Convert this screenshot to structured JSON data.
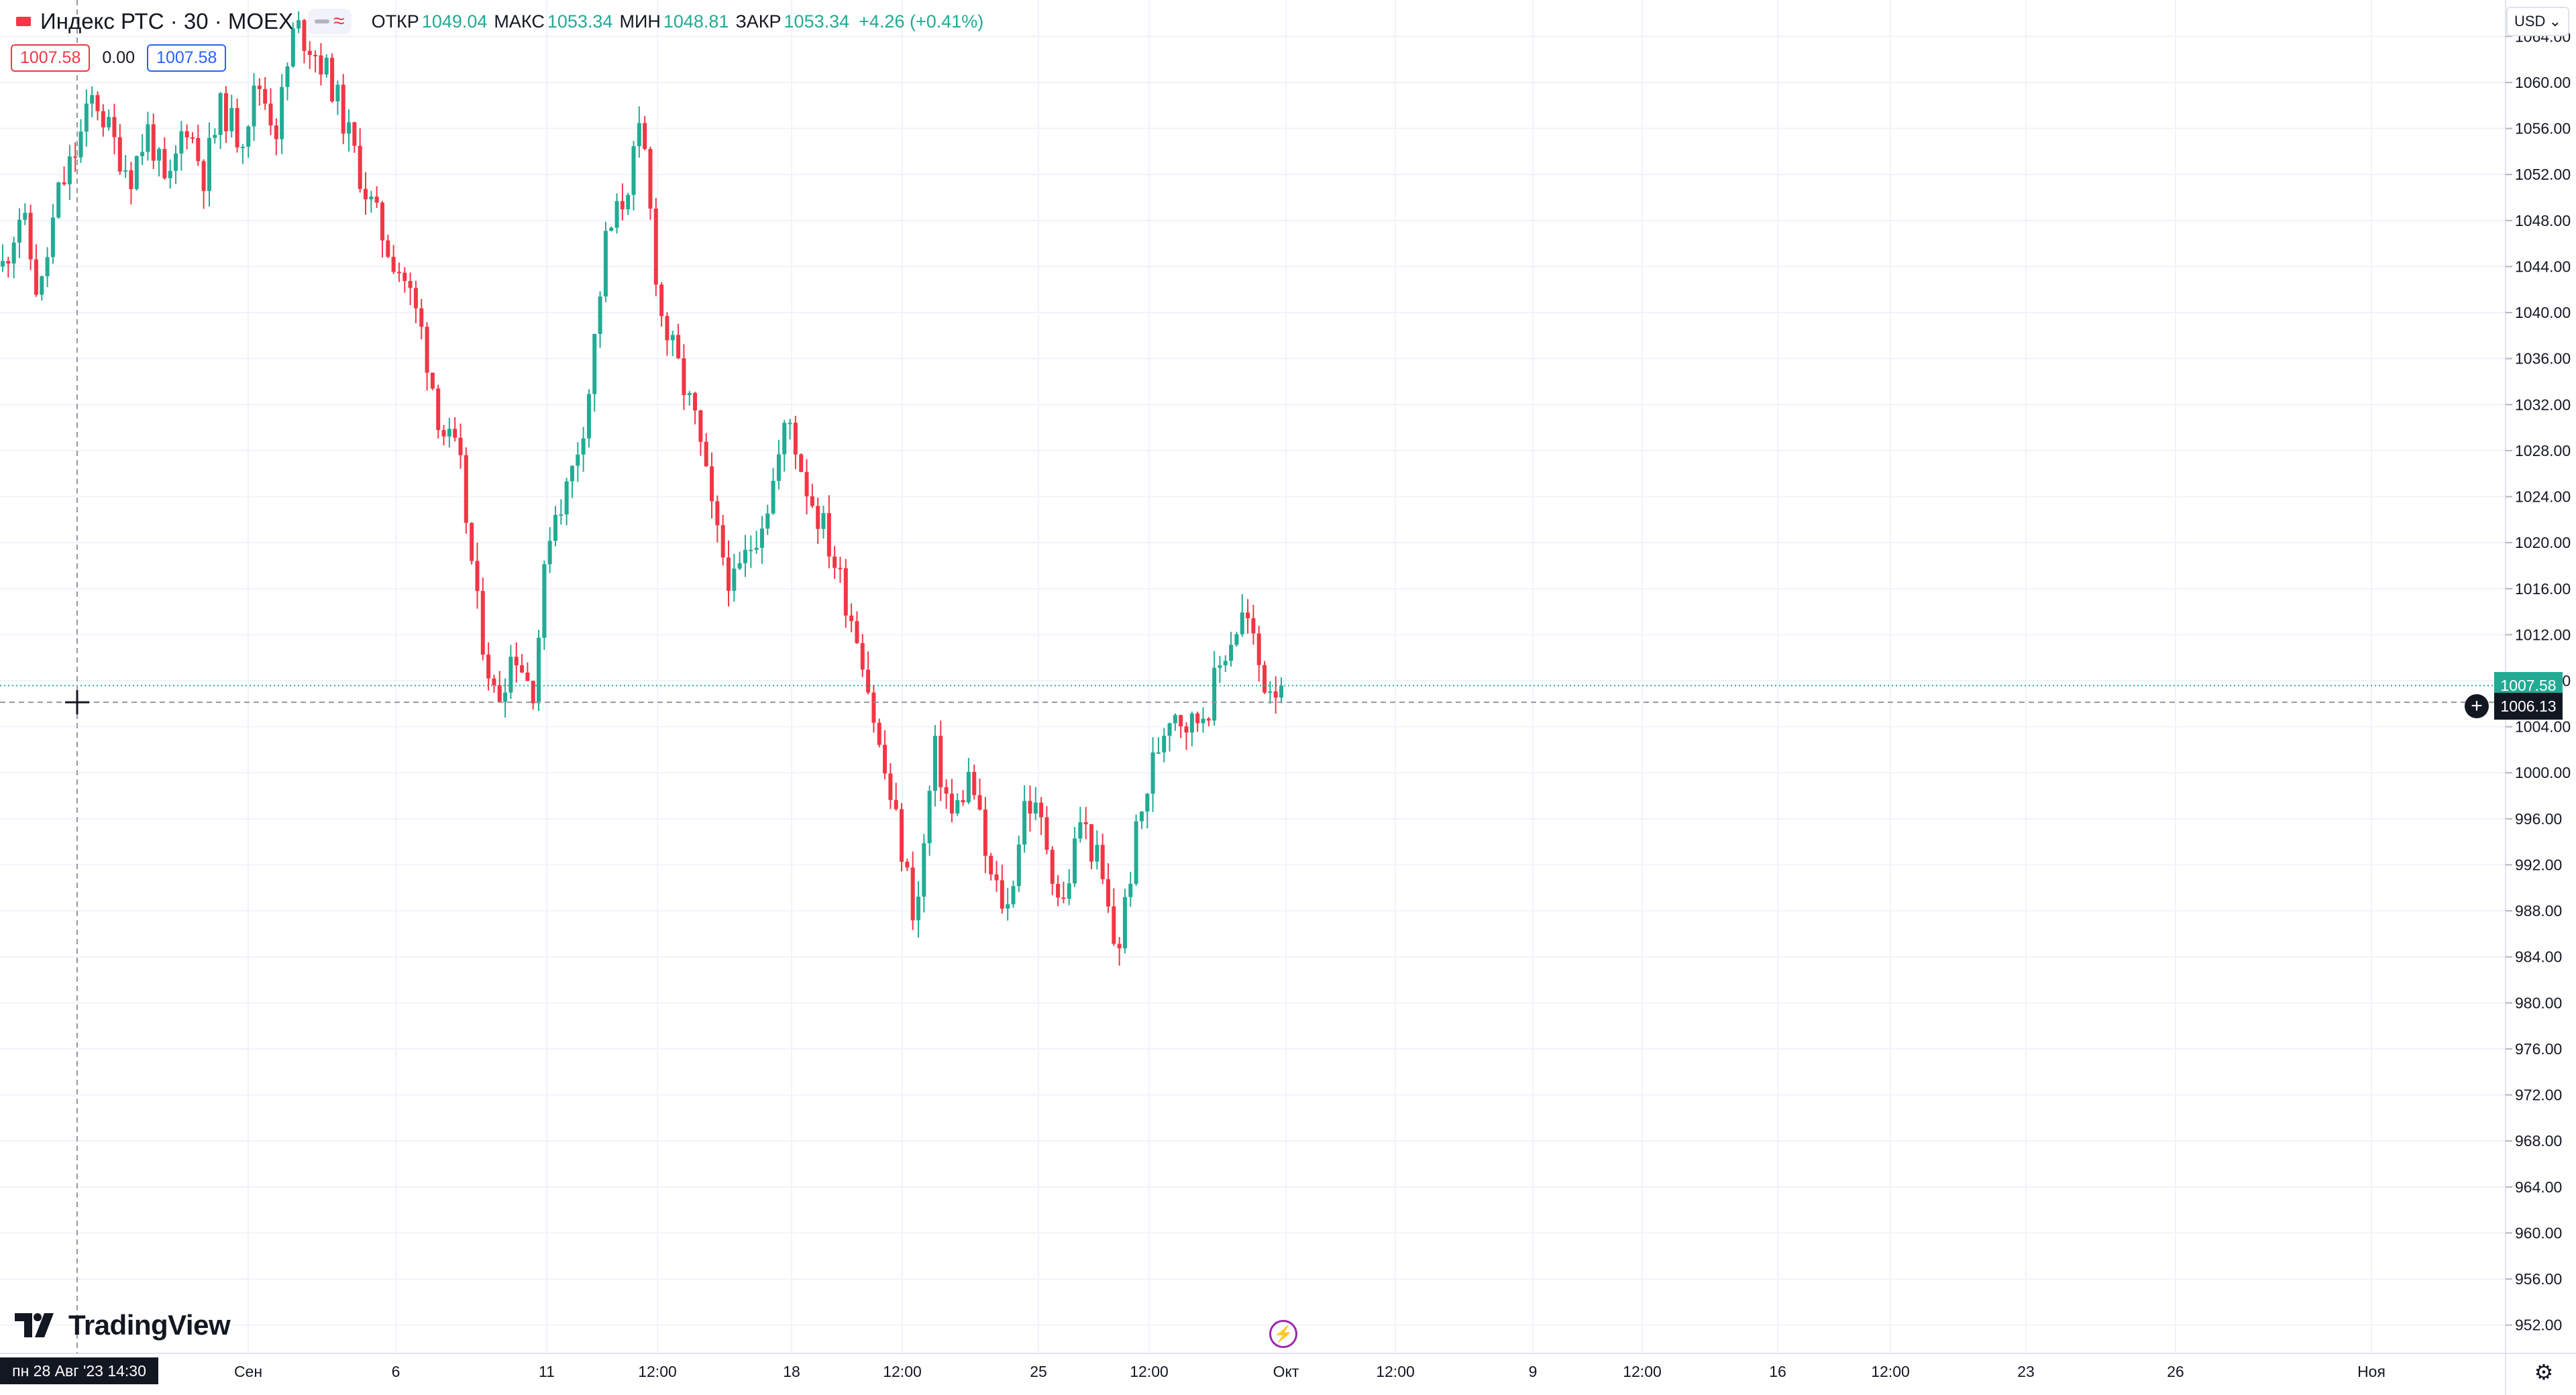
{
  "legend": {
    "symbol": "Индекс РТС · 30 · MOEX",
    "open_label": "ОТКР",
    "open": "1049.04",
    "high_label": "МАКС",
    "high": "1053.34",
    "low_label": "МИН",
    "low": "1048.81",
    "close_label": "ЗАКР",
    "close": "1053.34",
    "change": "+4.26 (+0.41%)"
  },
  "trade": {
    "sell": "1007.58",
    "spread": "0.00",
    "buy": "1007.58"
  },
  "currency": {
    "code": "USD",
    "chevron_icon": "chevron-down-icon"
  },
  "branding": {
    "logo_text": "TradingView"
  },
  "crosshair": {
    "date_label": "пн 28 Авг '23   14:30",
    "price_label": "1006.13"
  },
  "last_price": "1007.58",
  "colors": {
    "up": "#22ab94",
    "down": "#f23645",
    "grid": "#f0f3fa",
    "axis_text": "#131722"
  },
  "chart_data": {
    "type": "candlestick",
    "y_ticks": [
      "1064.00",
      "1060.00",
      "1056.00",
      "1052.00",
      "1048.00",
      "1044.00",
      "1040.00",
      "1036.00",
      "1032.00",
      "1028.00",
      "1024.00",
      "1020.00",
      "1016.00",
      "1012.00",
      "1008.00",
      "1004.00",
      "1000.00",
      "996.00",
      "992.00",
      "988.00",
      "984.00",
      "980.00",
      "976.00",
      "972.00",
      "968.00",
      "964.00",
      "960.00",
      "956.00",
      "952.00"
    ],
    "ylim": [
      950,
      1066
    ],
    "x_ticks": [
      "Сен",
      "6",
      "11",
      "12:00",
      "18",
      "12:00",
      "25",
      "12:00",
      "Окт",
      "12:00",
      "9",
      "12:00",
      "16",
      "12:00",
      "23",
      "26",
      "Ноя"
    ],
    "close_path": [
      1044,
      1049,
      1041,
      1050,
      1054,
      1059,
      1055,
      1052,
      1056,
      1050,
      1057,
      1052,
      1058,
      1055,
      1060,
      1056,
      1065,
      1063,
      1060,
      1055,
      1050,
      1046,
      1043,
      1038,
      1030,
      1027,
      1014,
      1006,
      1011,
      1007,
      1022,
      1025,
      1032,
      1046,
      1050,
      1056,
      1040,
      1035,
      1030,
      1021,
      1016,
      1020,
      1024,
      1031,
      1025,
      1021,
      1016,
      1011,
      1002,
      995,
      987,
      1002,
      996,
      1000,
      991,
      988,
      998,
      995,
      988,
      996,
      992,
      984,
      994,
      1001,
      1006,
      1004,
      1006,
      1011,
      1014,
      1008,
      1007.58
    ],
    "last": 1007.58,
    "crosshair_price": 1006.13
  }
}
